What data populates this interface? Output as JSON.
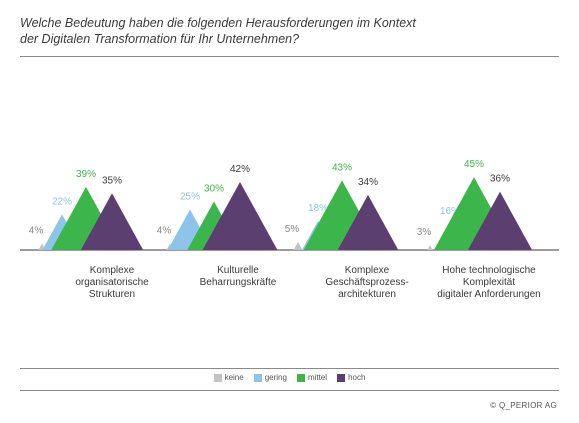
{
  "title_lines": [
    "Welche Bedeutung haben die folgenden Herausforderungen im Kontext",
    "der Digitalen Transformation für Ihr Unternehmen?"
  ],
  "colors": {
    "keine": "#c4c4c4",
    "gering": "#8ec3ea",
    "mittel": "#3cb64a",
    "hoch": "#5a3f70"
  },
  "legend": [
    {
      "key": "keine",
      "label": "keine"
    },
    {
      "key": "gering",
      "label": "gering"
    },
    {
      "key": "mittel",
      "label": "mittel"
    },
    {
      "key": "hoch",
      "label": "hoch"
    }
  ],
  "categories": [
    {
      "lines": [
        "Komplexe",
        "organisatorische",
        "Strukturen"
      ]
    },
    {
      "lines": [
        "Kulturelle",
        "Beharrungskräfte"
      ]
    },
    {
      "lines": [
        "Komplexe",
        "Geschäftsprozess-",
        "architekturen"
      ]
    },
    {
      "lines": [
        "Hohe technologische",
        "Komplexität",
        "digitaler Anforderungen"
      ]
    }
  ],
  "chart_data": {
    "type": "area",
    "categories": [
      "Komplexe organisatorische Strukturen",
      "Kulturelle Beharrungskräfte",
      "Komplexe Geschäftsprozessarchitekturen",
      "Hohe technologische Komplexität digitaler Anforderungen"
    ],
    "series": [
      {
        "name": "keine",
        "values": [
          4,
          4,
          5,
          3
        ]
      },
      {
        "name": "gering",
        "values": [
          22,
          25,
          18,
          16
        ]
      },
      {
        "name": "mittel",
        "values": [
          39,
          30,
          43,
          45
        ]
      },
      {
        "name": "hoch",
        "values": [
          35,
          42,
          34,
          36
        ]
      }
    ],
    "value_labels": {
      "keine": [
        "4%",
        "4%",
        "5%",
        "3%"
      ],
      "gering": [
        "22%",
        "25%",
        "18%",
        "16%"
      ],
      "mittel": [
        "39%",
        "30%",
        "43%",
        "45%"
      ],
      "hoch": [
        "35%",
        "42%",
        "34%",
        "36%"
      ]
    },
    "ylim": [
      0,
      50
    ],
    "grid": false,
    "legend_position": "bottom-center"
  },
  "copyright": "© Q_PERIOR AG"
}
